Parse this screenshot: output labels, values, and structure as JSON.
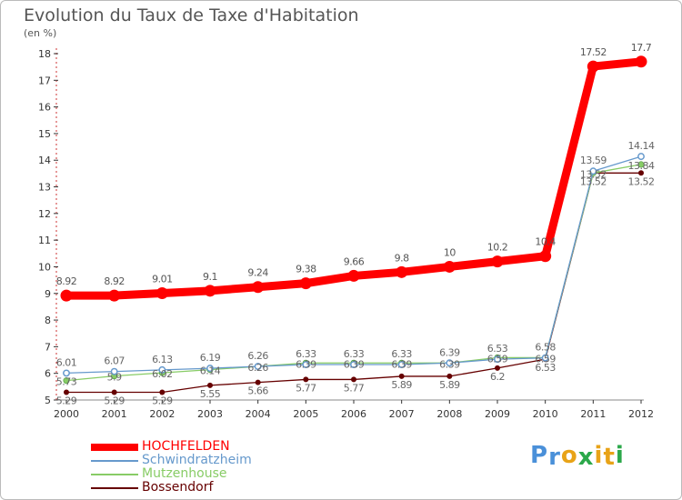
{
  "title": "Evolution du Taux de Taxe d'Habitation",
  "subtitle": "(en %)",
  "logo": {
    "letters": [
      "P",
      "r",
      "o",
      "x",
      "i",
      "t",
      "i"
    ],
    "colors": [
      "#4a90d9",
      "#4a90d9",
      "#e8a317",
      "#2ba84a",
      "#e8a317",
      "#e8a317",
      "#2ba84a"
    ]
  },
  "chart_data": {
    "type": "line",
    "title": "Evolution du Taux de Taxe d'Habitation",
    "ylabel": "(en %)",
    "xlabel": "",
    "x": [
      "2000",
      "2001",
      "2002",
      "2003",
      "2004",
      "2005",
      "2006",
      "2007",
      "2008",
      "2009",
      "2010",
      "2011",
      "2012"
    ],
    "y_ticks": [
      "5",
      "6",
      "7",
      "8",
      "9",
      "10",
      "11",
      "12",
      "13",
      "14",
      "15",
      "16",
      "17",
      "18"
    ],
    "ylim": [
      5,
      18
    ],
    "grid": false,
    "legend_position": "bottom-left",
    "series": [
      {
        "name": "HOCHFELDEN",
        "color": "#ff0000",
        "values": [
          8.92,
          8.92,
          9.01,
          9.1,
          9.24,
          9.38,
          9.66,
          9.8,
          10,
          10.2,
          10.4,
          17.52,
          17.7
        ],
        "labels": [
          "8.92",
          "8.92",
          "9.01",
          "9.1",
          "9.24",
          "9.38",
          "9.66",
          "9.8",
          "10",
          "10.2",
          "10.4",
          "17.52",
          "17.7"
        ]
      },
      {
        "name": "Schwindratzheim",
        "color": "#6699cc",
        "values": [
          6.01,
          6.07,
          6.13,
          6.19,
          6.26,
          6.33,
          6.33,
          6.33,
          6.39,
          6.53,
          6.58,
          13.59,
          14.14
        ],
        "labels": [
          "6.01",
          "6.07",
          "6.13",
          "6.19",
          "6.26",
          "6.33",
          "6.33",
          "6.33",
          "6.39",
          "6.53",
          "6.58",
          "13.59",
          "14.14"
        ]
      },
      {
        "name": "Mutzenhouse",
        "color": "#88cc66",
        "values": [
          5.73,
          5.9,
          6.02,
          6.14,
          6.26,
          6.39,
          6.39,
          6.39,
          6.39,
          6.59,
          6.59,
          13.52,
          13.84
        ],
        "labels": [
          "5.73",
          "5.9",
          "6.02",
          "6.14",
          "6.26",
          "6.39",
          "6.39",
          "6.39",
          "6.39",
          "6.59",
          "6.59",
          "13.52",
          "13.84"
        ]
      },
      {
        "name": "Bossendorf",
        "color": "#660000",
        "values": [
          5.29,
          5.29,
          5.29,
          5.55,
          5.66,
          5.77,
          5.77,
          5.89,
          5.89,
          6.2,
          6.53,
          13.52,
          13.52
        ],
        "labels": [
          "5.29",
          "5.29",
          "5.29",
          "5.55",
          "5.66",
          "5.77",
          "5.77",
          "5.89",
          "5.89",
          "6.2",
          "6.53",
          "13.52",
          "13.52"
        ]
      }
    ]
  }
}
